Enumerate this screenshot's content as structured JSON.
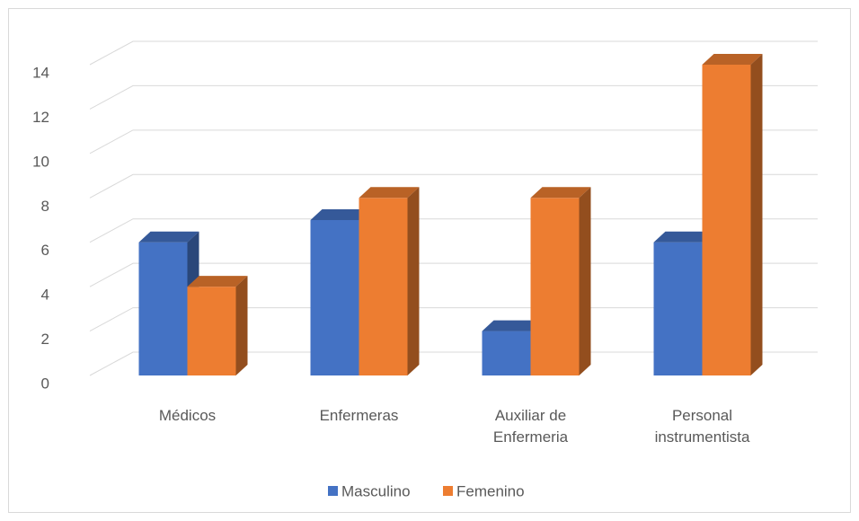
{
  "chart_data": {
    "type": "bar3d",
    "categories": [
      "Médicos",
      "Enfermeras",
      "Auxiliar de Enfermeria",
      "Personal instrumentista"
    ],
    "series": [
      {
        "name": "Masculino",
        "color": "#4472c4",
        "values": [
          6,
          7,
          2,
          6
        ]
      },
      {
        "name": "Femenino",
        "color": "#ed7d31",
        "values": [
          4,
          8,
          8,
          14
        ]
      }
    ],
    "ylim": [
      0,
      14
    ],
    "yticks": [
      0,
      2,
      4,
      6,
      8,
      10,
      12,
      14
    ],
    "grid": true,
    "legend": "bottom"
  }
}
